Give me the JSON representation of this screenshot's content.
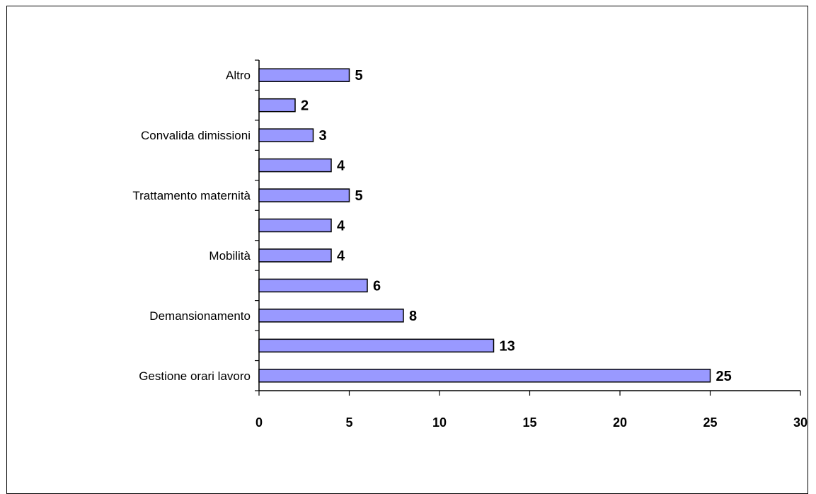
{
  "chart_data": {
    "type": "bar",
    "orientation": "horizontal",
    "categories": [
      "Gestione orari lavoro",
      "",
      "Demansionamento",
      "",
      "Mobilità",
      "",
      "Trattamento maternità",
      "",
      "Convalida dimissioni",
      "",
      "Altro"
    ],
    "values": [
      25,
      13,
      8,
      6,
      4,
      4,
      5,
      4,
      3,
      2,
      5
    ],
    "xlim": [
      0,
      30
    ],
    "xticks": [
      0,
      5,
      10,
      15,
      20,
      25,
      30
    ],
    "title": "",
    "xlabel": "",
    "ylabel": "",
    "bar_color": "#9999ff",
    "bar_edge_color": "#000000",
    "grid": false,
    "legend": "none"
  }
}
